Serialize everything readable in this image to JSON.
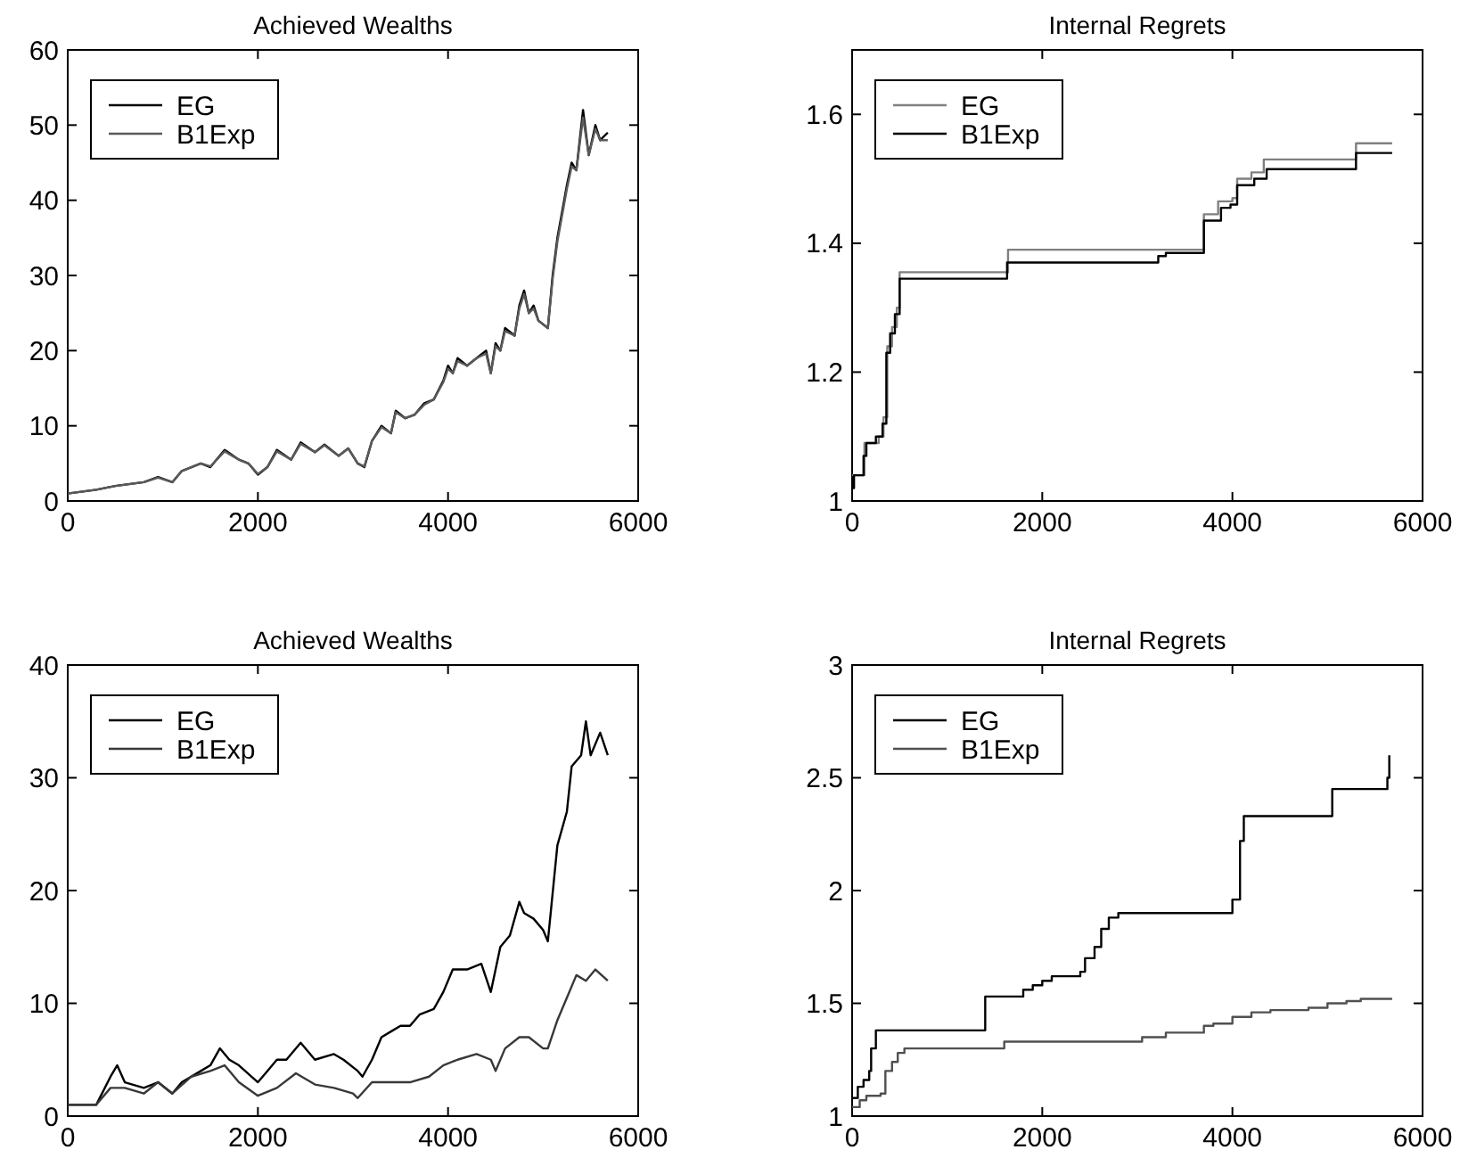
{
  "chart_data": [
    {
      "type": "line",
      "title": "Achieved Wealths",
      "xlim": [
        0,
        6000
      ],
      "xticks": [
        0,
        2000,
        4000,
        6000
      ],
      "ylim": [
        0,
        60
      ],
      "yticks": [
        0,
        10,
        20,
        30,
        40,
        50,
        60
      ],
      "legend": "top left",
      "grid": false,
      "series": [
        {
          "name": "EG",
          "color": "#000000",
          "x": [
            0,
            300,
            500,
            800,
            950,
            1100,
            1200,
            1400,
            1500,
            1650,
            1800,
            1900,
            2000,
            2100,
            2200,
            2350,
            2450,
            2600,
            2700,
            2850,
            2950,
            3050,
            3120,
            3200,
            3300,
            3400,
            3450,
            3550,
            3650,
            3750,
            3850,
            3950,
            4000,
            4050,
            4100,
            4200,
            4300,
            4400,
            4450,
            4500,
            4550,
            4600,
            4700,
            4750,
            4800,
            4850,
            4900,
            4950,
            5050,
            5100,
            5150,
            5250,
            5300,
            5350,
            5420,
            5480,
            5550,
            5600,
            5680
          ],
          "values": [
            1,
            1.5,
            2,
            2.5,
            3.2,
            2.5,
            4,
            5,
            4.5,
            6.8,
            5.5,
            5,
            3.5,
            4.5,
            6.8,
            5.5,
            7.8,
            6.5,
            7.5,
            6,
            7,
            5,
            4.5,
            8,
            10,
            9,
            12,
            11,
            11.5,
            13,
            13.5,
            16,
            18,
            17,
            19,
            18,
            19,
            20,
            17,
            21,
            20,
            23,
            22,
            26,
            28,
            25,
            26,
            24,
            23,
            30,
            35,
            42,
            45,
            44,
            52,
            46,
            50,
            48,
            49
          ]
        },
        {
          "name": "B1Exp",
          "color": "#5a5a5a",
          "x": [
            0,
            300,
            500,
            800,
            950,
            1100,
            1200,
            1400,
            1500,
            1650,
            1800,
            1900,
            2000,
            2100,
            2200,
            2350,
            2450,
            2600,
            2700,
            2850,
            2950,
            3050,
            3120,
            3200,
            3300,
            3400,
            3450,
            3550,
            3650,
            3750,
            3850,
            3950,
            4000,
            4050,
            4100,
            4200,
            4300,
            4400,
            4450,
            4500,
            4550,
            4600,
            4700,
            4750,
            4800,
            4850,
            4900,
            4950,
            5050,
            5100,
            5150,
            5250,
            5300,
            5350,
            5420,
            5480,
            5550,
            5600,
            5680
          ],
          "values": [
            1,
            1.5,
            2,
            2.5,
            3.1,
            2.5,
            4,
            5,
            4.6,
            6.6,
            5.5,
            5,
            3.6,
            4.5,
            6.6,
            5.5,
            7.6,
            6.5,
            7.4,
            6,
            7,
            5,
            4.6,
            8,
            9.8,
            9,
            11.8,
            11,
            11.5,
            12.8,
            13.5,
            15.8,
            17.6,
            17,
            18.6,
            18,
            19,
            19.6,
            17,
            20.6,
            20,
            22.6,
            22,
            25.6,
            27.5,
            25,
            25.6,
            24,
            23,
            29.5,
            34.5,
            41.5,
            44.5,
            44,
            51,
            46,
            49.5,
            48,
            48
          ]
        }
      ]
    },
    {
      "type": "step",
      "title": "Internal Regrets",
      "xlim": [
        0,
        6000
      ],
      "xticks": [
        0,
        2000,
        4000,
        6000
      ],
      "ylim": [
        1,
        1.7
      ],
      "yticks": [
        1,
        1.2,
        1.4,
        1.6
      ],
      "legend": "top left",
      "grid": false,
      "series": [
        {
          "name": "EG",
          "color": "#808080",
          "x": [
            0,
            130,
            280,
            330,
            370,
            420,
            470,
            500,
            1640,
            3700,
            3850,
            4000,
            4050,
            4200,
            4330,
            5300,
            5680
          ],
          "values": [
            1.04,
            1.09,
            1.1,
            1.13,
            1.24,
            1.27,
            1.3,
            1.355,
            1.39,
            1.445,
            1.465,
            1.47,
            1.5,
            1.51,
            1.53,
            1.555,
            1.555
          ]
        },
        {
          "name": "B1Exp",
          "color": "#000000",
          "x": [
            0,
            20,
            120,
            150,
            250,
            320,
            360,
            400,
            450,
            500,
            1630,
            3220,
            3300,
            3700,
            3880,
            3980,
            4050,
            4230,
            4360,
            5300,
            5680
          ],
          "values": [
            1.02,
            1.04,
            1.07,
            1.09,
            1.1,
            1.12,
            1.23,
            1.26,
            1.29,
            1.345,
            1.37,
            1.38,
            1.385,
            1.435,
            1.455,
            1.46,
            1.49,
            1.5,
            1.515,
            1.54,
            1.54
          ]
        }
      ]
    },
    {
      "type": "line",
      "title": "Achieved Wealths",
      "xlim": [
        0,
        6000
      ],
      "xticks": [
        0,
        2000,
        4000,
        6000
      ],
      "ylim": [
        0,
        40
      ],
      "yticks": [
        0,
        10,
        20,
        30,
        40
      ],
      "legend": "top left",
      "grid": false,
      "series": [
        {
          "name": "EG",
          "color": "#000000",
          "x": [
            0,
            300,
            450,
            520,
            600,
            800,
            950,
            1100,
            1200,
            1400,
            1500,
            1600,
            1700,
            1800,
            2000,
            2100,
            2200,
            2300,
            2450,
            2600,
            2800,
            2900,
            3050,
            3100,
            3200,
            3300,
            3400,
            3500,
            3600,
            3700,
            3850,
            3950,
            4050,
            4200,
            4350,
            4450,
            4550,
            4650,
            4750,
            4800,
            4900,
            5000,
            5050,
            5150,
            5250,
            5300,
            5400,
            5450,
            5500,
            5600,
            5680
          ],
          "values": [
            1,
            1,
            3.5,
            4.5,
            3,
            2.5,
            3,
            2,
            3,
            4,
            4.5,
            6,
            5,
            4.5,
            3,
            4,
            5,
            5,
            6.5,
            5,
            5.5,
            5,
            4,
            3.5,
            5,
            7,
            7.5,
            8,
            8,
            9,
            9.5,
            11,
            13,
            13,
            13.5,
            11,
            15,
            16,
            19,
            18,
            17.5,
            16.5,
            15.5,
            24,
            27,
            31,
            32,
            35,
            32,
            34,
            32
          ]
        },
        {
          "name": "B1Exp",
          "color": "#383838",
          "x": [
            0,
            300,
            450,
            600,
            800,
            950,
            1100,
            1300,
            1500,
            1650,
            1800,
            2000,
            2200,
            2400,
            2600,
            2800,
            3000,
            3050,
            3200,
            3400,
            3600,
            3800,
            3950,
            4100,
            4300,
            4450,
            4500,
            4600,
            4750,
            4850,
            5000,
            5050,
            5150,
            5250,
            5350,
            5450,
            5550,
            5680
          ],
          "values": [
            1,
            1,
            2.5,
            2.5,
            2,
            3,
            2,
            3.5,
            4,
            4.5,
            3,
            1.8,
            2.5,
            3.8,
            2.8,
            2.5,
            2,
            1.6,
            3,
            3,
            3,
            3.5,
            4.5,
            5,
            5.5,
            5,
            4,
            6,
            7,
            7,
            6,
            6,
            8.5,
            10.5,
            12.5,
            12,
            13,
            12
          ]
        }
      ]
    },
    {
      "type": "step",
      "title": "Internal Regrets",
      "xlim": [
        0,
        6000
      ],
      "xticks": [
        0,
        2000,
        4000,
        6000
      ],
      "ylim": [
        1,
        3
      ],
      "yticks": [
        1,
        1.5,
        2,
        2.5,
        3
      ],
      "legend": "top left",
      "grid": false,
      "series": [
        {
          "name": "EG",
          "color": "#000000",
          "x": [
            0,
            60,
            120,
            180,
            200,
            250,
            1400,
            1800,
            1900,
            2000,
            2100,
            2400,
            2450,
            2550,
            2620,
            2700,
            2800,
            4000,
            4080,
            4120,
            5050,
            5630,
            5650
          ],
          "values": [
            1.08,
            1.13,
            1.16,
            1.2,
            1.3,
            1.38,
            1.53,
            1.56,
            1.58,
            1.6,
            1.62,
            1.64,
            1.7,
            1.75,
            1.83,
            1.88,
            1.9,
            1.96,
            2.22,
            2.33,
            2.45,
            2.5,
            2.6
          ]
        },
        {
          "name": "B1Exp",
          "color": "#505050",
          "x": [
            0,
            80,
            150,
            300,
            350,
            420,
            480,
            550,
            1600,
            3050,
            3300,
            3700,
            3800,
            4000,
            4200,
            4400,
            4800,
            5000,
            5200,
            5350,
            5680
          ],
          "values": [
            1.04,
            1.07,
            1.09,
            1.1,
            1.2,
            1.24,
            1.28,
            1.3,
            1.33,
            1.35,
            1.37,
            1.4,
            1.41,
            1.44,
            1.46,
            1.47,
            1.48,
            1.5,
            1.51,
            1.52,
            1.52
          ]
        }
      ]
    }
  ]
}
